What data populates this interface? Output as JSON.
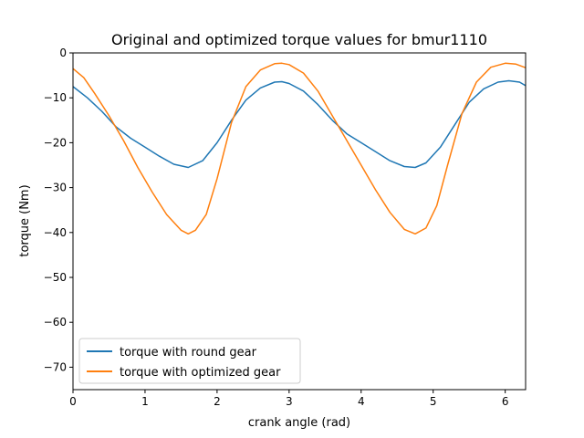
{
  "chart_data": {
    "type": "line",
    "title": "Original and optimized torque values for bmur1110",
    "xlabel": "crank angle (rad)",
    "ylabel": "torque (Nm)",
    "xlim": [
      0,
      6.283
    ],
    "ylim": [
      -75,
      0
    ],
    "xticks": [
      0,
      1,
      2,
      3,
      4,
      5,
      6
    ],
    "yticks": [
      0,
      -10,
      -20,
      -30,
      -40,
      -50,
      -60,
      -70
    ],
    "xtick_labels": [
      "0",
      "1",
      "2",
      "3",
      "4",
      "5",
      "6"
    ],
    "ytick_labels": [
      "0",
      "−10",
      "−20",
      "−30",
      "−40",
      "−50",
      "−60",
      "−70"
    ],
    "grid": false,
    "legend_position": "lower-left",
    "series": [
      {
        "name": "torque with round gear",
        "color": "#1f77b4",
        "x": [
          0.0,
          0.2,
          0.4,
          0.6,
          0.8,
          1.0,
          1.2,
          1.4,
          1.6,
          1.8,
          2.0,
          2.2,
          2.4,
          2.6,
          2.8,
          2.9,
          3.0,
          3.2,
          3.4,
          3.6,
          3.8,
          4.0,
          4.2,
          4.4,
          4.6,
          4.75,
          4.9,
          5.1,
          5.3,
          5.5,
          5.7,
          5.9,
          6.05,
          6.2,
          6.283
        ],
        "y": [
          -7.5,
          -10.0,
          -13.0,
          -16.5,
          -19.0,
          -21.0,
          -23.0,
          -24.8,
          -25.5,
          -24.0,
          -20.0,
          -15.0,
          -10.5,
          -7.8,
          -6.5,
          -6.4,
          -6.8,
          -8.5,
          -11.5,
          -15.0,
          -18.0,
          -20.0,
          -22.0,
          -24.0,
          -25.3,
          -25.5,
          -24.5,
          -21.0,
          -16.0,
          -11.0,
          -8.0,
          -6.5,
          -6.2,
          -6.5,
          -7.3
        ]
      },
      {
        "name": "torque with optimized gear",
        "color": "#ff7f0e",
        "x": [
          0.0,
          0.15,
          0.3,
          0.5,
          0.7,
          0.9,
          1.1,
          1.3,
          1.5,
          1.6,
          1.7,
          1.85,
          2.0,
          2.2,
          2.4,
          2.6,
          2.8,
          2.9,
          3.0,
          3.2,
          3.4,
          3.6,
          3.8,
          4.0,
          4.2,
          4.4,
          4.6,
          4.75,
          4.9,
          5.05,
          5.2,
          5.4,
          5.6,
          5.8,
          6.0,
          6.15,
          6.283
        ],
        "y": [
          -3.5,
          -5.5,
          -9.0,
          -14.0,
          -19.5,
          -25.5,
          -31.0,
          -36.0,
          -39.5,
          -40.3,
          -39.5,
          -36.0,
          -28.0,
          -15.5,
          -7.5,
          -3.8,
          -2.4,
          -2.3,
          -2.6,
          -4.5,
          -8.5,
          -14.0,
          -19.5,
          -25.0,
          -30.5,
          -35.5,
          -39.3,
          -40.3,
          -39.0,
          -34.0,
          -25.0,
          -13.5,
          -6.5,
          -3.2,
          -2.3,
          -2.5,
          -3.3
        ]
      }
    ]
  }
}
